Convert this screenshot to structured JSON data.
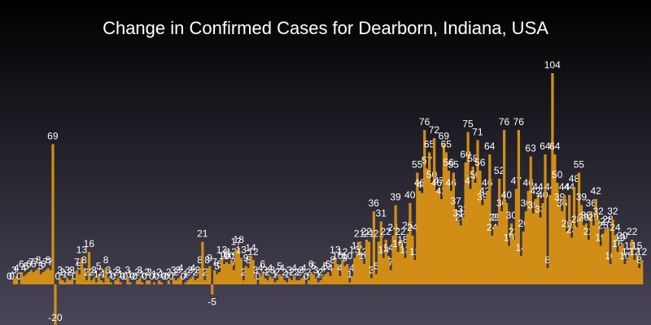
{
  "chart_data": {
    "type": "bar",
    "title": "Change in Confirmed Cases for Dearborn, Indiana, USA",
    "color": "#d08e17",
    "ylim": [
      -20,
      120
    ],
    "values": [
      0,
      0,
      3,
      4,
      0,
      6,
      4,
      5,
      6,
      7,
      6,
      7,
      8,
      5,
      6,
      7,
      8,
      7,
      69,
      -20,
      0,
      3,
      2,
      1,
      3,
      2,
      3,
      0,
      7,
      5,
      13,
      8,
      2,
      16,
      2,
      3,
      1,
      5,
      2,
      1,
      8,
      3,
      1,
      0,
      2,
      3,
      1,
      0,
      0,
      3,
      1,
      0,
      0,
      2,
      3,
      1,
      0,
      2,
      2,
      0,
      1,
      0,
      2,
      1,
      0,
      0,
      2,
      0,
      3,
      2,
      3,
      4,
      0,
      1,
      2,
      3,
      4,
      2,
      3,
      8,
      21,
      2,
      8,
      9,
      -5,
      7,
      5,
      6,
      13,
      10,
      11,
      10,
      12,
      7,
      17,
      18,
      13,
      2,
      9,
      8,
      14,
      12,
      3,
      0,
      4,
      6,
      3,
      2,
      4,
      3,
      1,
      2,
      5,
      4,
      2,
      1,
      3,
      2,
      4,
      2,
      2,
      3,
      4,
      0,
      2,
      6,
      5,
      3,
      1,
      2,
      4,
      5,
      6,
      4,
      8,
      13,
      10,
      4,
      12,
      9,
      10,
      1,
      4,
      13,
      15,
      21,
      12,
      10,
      22,
      21,
      3,
      36,
      5,
      21,
      31,
      13,
      22,
      14,
      7,
      24,
      39,
      16,
      22,
      18,
      13,
      25,
      40,
      24,
      12,
      55,
      46,
      45,
      76,
      57,
      65,
      50,
      72,
      46,
      47,
      42,
      69,
      65,
      56,
      46,
      55,
      37,
      31,
      29,
      33,
      60,
      75,
      47,
      58,
      50,
      71,
      56,
      39,
      42,
      46,
      64,
      24,
      29,
      29,
      52,
      36,
      76,
      40,
      19,
      30,
      22,
      47,
      76,
      14,
      26,
      36,
      46,
      63,
      35,
      42,
      44,
      33,
      40,
      64,
      8,
      44,
      104,
      64,
      50,
      39,
      36,
      44,
      26,
      44,
      23,
      48,
      28,
      55,
      39,
      29,
      30,
      22,
      36,
      29,
      42,
      32,
      19,
      25,
      27,
      28,
      10,
      32,
      24,
      16,
      19,
      20,
      10,
      12,
      15,
      22,
      12,
      15,
      8,
      12
    ]
  }
}
